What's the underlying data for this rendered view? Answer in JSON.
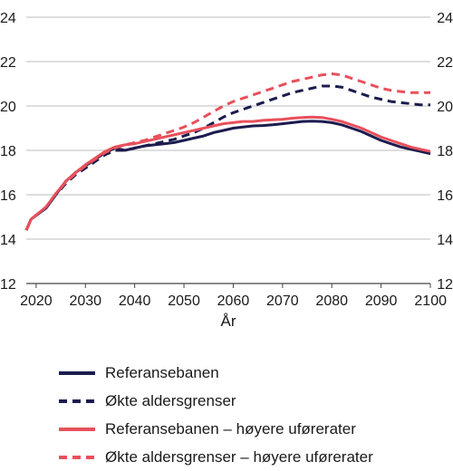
{
  "chart_data": {
    "type": "line",
    "title": "",
    "xlabel": "År",
    "ylabel": "",
    "xlim": [
      2018,
      2100
    ],
    "ylim": [
      12,
      24
    ],
    "x_ticks": [
      2020,
      2030,
      2040,
      2050,
      2060,
      2070,
      2080,
      2090,
      2100
    ],
    "y_ticks": [
      12,
      14,
      16,
      18,
      20,
      22,
      24
    ],
    "grid": true,
    "legend_position": "bottom",
    "x": [
      2018,
      2019,
      2022,
      2024,
      2026,
      2028,
      2030,
      2032,
      2034,
      2036,
      2038,
      2040,
      2042,
      2044,
      2046,
      2048,
      2050,
      2052,
      2054,
      2056,
      2058,
      2060,
      2062,
      2064,
      2066,
      2068,
      2070,
      2072,
      2074,
      2076,
      2078,
      2080,
      2082,
      2084,
      2086,
      2088,
      2090,
      2092,
      2094,
      2096,
      2098,
      2100
    ],
    "series": [
      {
        "name": "Referansebanen",
        "style": "solid",
        "color": "#1c1c4e",
        "values": [
          14.4,
          14.9,
          15.4,
          16.0,
          16.6,
          17.0,
          17.3,
          17.6,
          17.9,
          18.1,
          18.0,
          18.1,
          18.2,
          18.25,
          18.3,
          18.35,
          18.45,
          18.55,
          18.65,
          18.8,
          18.9,
          19.0,
          19.05,
          19.1,
          19.12,
          19.15,
          19.2,
          19.25,
          19.3,
          19.32,
          19.3,
          19.25,
          19.15,
          19.0,
          18.85,
          18.65,
          18.45,
          18.3,
          18.15,
          18.05,
          17.95,
          17.85
        ]
      },
      {
        "name": "Økte aldersgrenser",
        "style": "dashed",
        "color": "#1c1c4e",
        "values": [
          14.4,
          14.9,
          15.4,
          16.0,
          16.5,
          16.9,
          17.2,
          17.5,
          17.8,
          18.0,
          18.0,
          18.1,
          18.2,
          18.3,
          18.4,
          18.5,
          18.65,
          18.8,
          19.0,
          19.25,
          19.5,
          19.7,
          19.85,
          20.0,
          20.15,
          20.3,
          20.45,
          20.6,
          20.7,
          20.8,
          20.9,
          20.9,
          20.85,
          20.7,
          20.55,
          20.4,
          20.3,
          20.2,
          20.15,
          20.1,
          20.05,
          20.05
        ]
      },
      {
        "name": "Referansebanen – høyere uførerater",
        "style": "solid",
        "color": "#e8505b",
        "values": [
          14.4,
          14.9,
          15.45,
          16.05,
          16.6,
          17.0,
          17.35,
          17.65,
          17.95,
          18.15,
          18.25,
          18.3,
          18.4,
          18.5,
          18.6,
          18.7,
          18.8,
          18.9,
          19.0,
          19.1,
          19.2,
          19.25,
          19.3,
          19.3,
          19.35,
          19.38,
          19.4,
          19.45,
          19.48,
          19.5,
          19.48,
          19.4,
          19.3,
          19.15,
          19.0,
          18.8,
          18.6,
          18.45,
          18.3,
          18.15,
          18.05,
          17.95
        ]
      },
      {
        "name": "Økte aldersgrenser – høyere uførerater",
        "style": "dashed",
        "color": "#e8505b",
        "values": [
          14.4,
          14.9,
          15.45,
          16.05,
          16.55,
          16.95,
          17.3,
          17.6,
          17.9,
          18.1,
          18.25,
          18.35,
          18.45,
          18.6,
          18.75,
          18.9,
          19.05,
          19.25,
          19.5,
          19.75,
          20.0,
          20.2,
          20.35,
          20.5,
          20.65,
          20.8,
          20.95,
          21.1,
          21.2,
          21.3,
          21.4,
          21.45,
          21.4,
          21.25,
          21.1,
          20.95,
          20.8,
          20.7,
          20.65,
          20.6,
          20.6,
          20.6
        ]
      }
    ]
  }
}
